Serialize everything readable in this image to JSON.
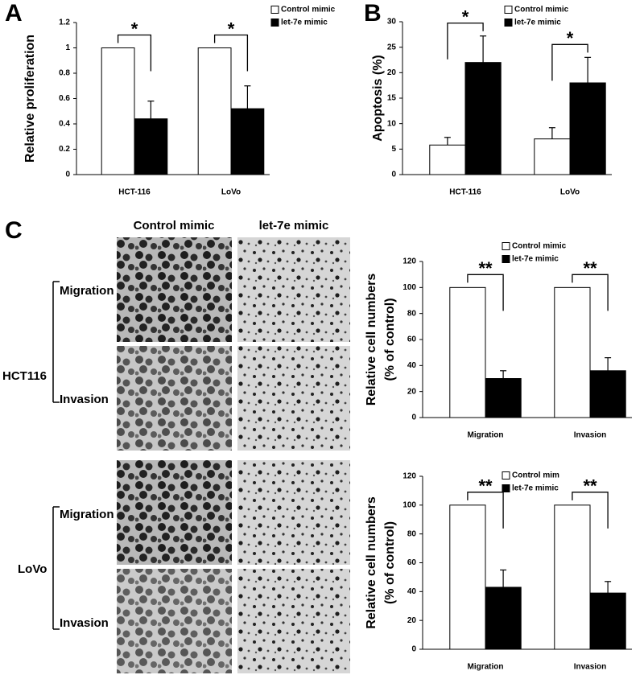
{
  "figure": {
    "panel_labels": [
      "A",
      "B",
      "C"
    ],
    "image_columns": [
      "Control mimic",
      "let-7e mimic"
    ],
    "image_rows": [
      {
        "cell_line": "HCT116",
        "assays": [
          "Migration",
          "Invasion"
        ]
      },
      {
        "cell_line": "LoVo",
        "assays": [
          "Migration",
          "Invasion"
        ]
      }
    ]
  },
  "chart_data": [
    {
      "type": "bar",
      "ylabel": [
        "Relative proliferation"
      ],
      "categories": [
        "HCT-116",
        "LoVo"
      ],
      "series": [
        {
          "name": "Control mimic",
          "color": "#ffffff",
          "values": [
            1,
            1
          ]
        },
        {
          "name": "let-7e mimic",
          "color": "#000000",
          "values": [
            0.44,
            0.52
          ],
          "errors": [
            0.14,
            0.18
          ]
        }
      ],
      "annotations": [
        "*",
        "*"
      ],
      "ylim": [
        0,
        1.2
      ],
      "yticks": [
        0,
        0.2,
        0.4,
        0.6,
        0.8,
        1,
        1.2
      ],
      "legend": "upper right"
    },
    {
      "type": "bar",
      "ylabel": [
        "Apoptosis (%)"
      ],
      "categories": [
        "HCT-116",
        "LoVo"
      ],
      "series": [
        {
          "name": "Control mimic",
          "color": "#ffffff",
          "values": [
            5.8,
            7
          ],
          "errors": [
            1.5,
            2.2
          ]
        },
        {
          "name": "let-7e mimic",
          "color": "#000000",
          "values": [
            22,
            18
          ],
          "errors": [
            5.2,
            5
          ]
        }
      ],
      "annotations": [
        "*",
        "*"
      ],
      "ylim": [
        0,
        30
      ],
      "yticks": [
        0,
        5,
        10,
        15,
        20,
        25,
        30
      ],
      "legend": "upper right"
    },
    {
      "type": "bar",
      "ylabel": [
        "Relative cell numbers",
        "(% of control)"
      ],
      "categories": [
        "Migration",
        "Invasion"
      ],
      "series": [
        {
          "name": "Control mimic",
          "color": "#ffffff",
          "values": [
            100,
            100
          ]
        },
        {
          "name": "let-7e mimic",
          "color": "#000000",
          "values": [
            30,
            36
          ],
          "errors": [
            6,
            10
          ]
        }
      ],
      "annotations": [
        "**",
        "**"
      ],
      "ylim": [
        0,
        120
      ],
      "yticks": [
        0,
        20,
        40,
        60,
        80,
        100,
        120
      ],
      "legend": "upper right"
    },
    {
      "type": "bar",
      "ylabel": [
        "Relative cell numbers",
        "(% of control)"
      ],
      "categories": [
        "Migration",
        "Invasion"
      ],
      "series": [
        {
          "name": "Control mim",
          "color": "#ffffff",
          "values": [
            100,
            100
          ]
        },
        {
          "name": "let-7e mimic",
          "color": "#000000",
          "values": [
            43,
            39
          ],
          "errors": [
            12,
            8
          ]
        }
      ],
      "annotations": [
        "**",
        "**"
      ],
      "ylim": [
        0,
        120
      ],
      "yticks": [
        0,
        20,
        40,
        60,
        80,
        100,
        120
      ],
      "legend": "upper right"
    }
  ]
}
